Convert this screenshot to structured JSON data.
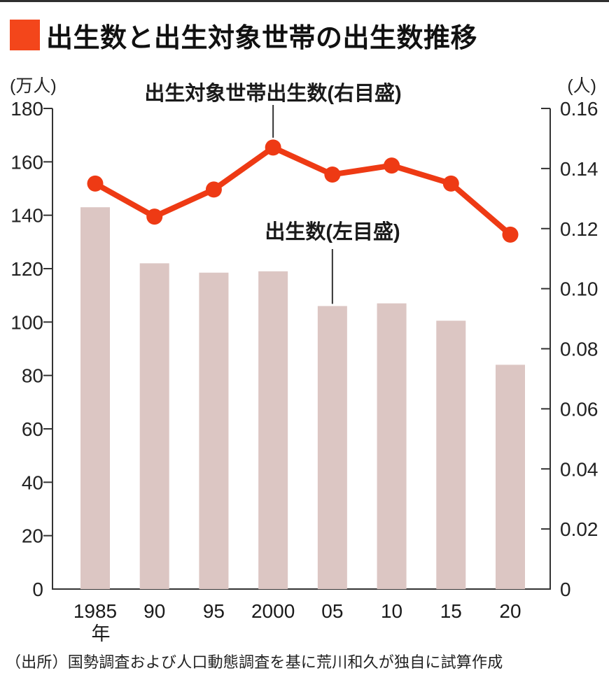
{
  "header": {
    "title": "出生数と出生対象世帯の出生数推移",
    "accent_color": "#f3461b"
  },
  "source": "（出所）国勢調査および人口動態調査を基に荒川和久が独自に試算作成",
  "chart_data": {
    "type": "bar+line",
    "title": "出生数と出生対象世帯の出生数推移",
    "categories": [
      "1985",
      "90",
      "95",
      "2000",
      "05",
      "10",
      "15",
      "20"
    ],
    "x_first_label_suffix": "年",
    "series": [
      {
        "name": "出生数（左目盛）",
        "type": "bar",
        "axis": "left",
        "color": "#dcc6c3",
        "values": [
          143,
          122,
          118.5,
          119,
          106,
          107,
          100.5,
          84
        ]
      },
      {
        "name": "出生対象世帯出生数（右目盛）",
        "type": "line",
        "axis": "right",
        "color": "#ee3a14",
        "values": [
          0.135,
          0.124,
          0.133,
          0.147,
          0.138,
          0.141,
          0.135,
          0.118
        ]
      }
    ],
    "left_axis": {
      "unit": "(万人)",
      "min": 0,
      "max": 180,
      "tick_labels": [
        "180",
        "160",
        "140",
        "120",
        "100",
        "80",
        "60",
        "40",
        "20",
        "0"
      ]
    },
    "right_axis": {
      "unit": "(人)",
      "min": 0,
      "max": 0.16,
      "tick_labels": [
        "0.16",
        "0.14",
        "0.12",
        "0.10",
        "0.08",
        "0.06",
        "0.04",
        "0.02",
        "0"
      ]
    },
    "annotations": {
      "line_label": "出生対象世帯出生数(右目盛)",
      "bar_label": "出生数(左目盛)"
    },
    "axis_color": "#333333",
    "grid": false,
    "legend_position": "inline-annotations"
  }
}
